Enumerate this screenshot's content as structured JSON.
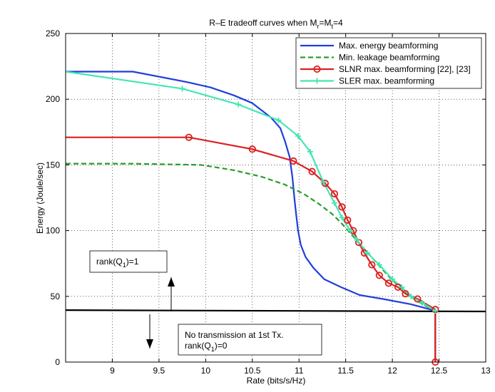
{
  "chart_data": {
    "type": "line",
    "title": {
      "main": "R–E tradeoff curves when M",
      "sub1": "r",
      "mid": "=M",
      "sub2": "t",
      "tail": "=4"
    },
    "xlabel": "Rate (bits/s/Hz)",
    "ylabel": "Energy (Joule/sec)",
    "xlim": [
      8.5,
      13
    ],
    "ylim": [
      0,
      250
    ],
    "xticks": [
      9,
      9.5,
      10,
      10.5,
      11,
      11.5,
      12,
      12.5,
      13
    ],
    "xtick_labels": [
      "9",
      "9.5",
      "10",
      "10.5",
      "11",
      "11.5",
      "12",
      "12.5",
      "13"
    ],
    "yticks": [
      0,
      50,
      100,
      150,
      200,
      250
    ],
    "ytick_labels": [
      "0",
      "50",
      "100",
      "150",
      "200",
      "250"
    ],
    "grid": true,
    "legend_position": "top-right",
    "series": [
      {
        "name": "Max. energy beamforming",
        "color": "#1f3fdb",
        "style": "solid",
        "marker": "none",
        "x": [
          8.5,
          9.22,
          9.8,
          10.05,
          10.3,
          10.5,
          10.7,
          10.8,
          10.85,
          10.9,
          10.93,
          10.95,
          10.97,
          10.99,
          11.02,
          11.07,
          11.15,
          11.27,
          11.45,
          11.65,
          11.9,
          12.2,
          12.46,
          12.46
        ],
        "y": [
          221,
          221,
          213,
          209,
          203,
          197,
          186,
          178,
          168,
          156,
          140,
          125,
          112,
          100,
          89,
          80,
          72,
          63,
          57,
          51,
          48,
          44,
          39,
          0
        ]
      },
      {
        "name": "Min. leakage beamforming",
        "color": "#2a9d2a",
        "style": "dashed",
        "marker": "none",
        "x": [
          8.5,
          9.2,
          9.95,
          10.3,
          10.6,
          10.85,
          11.05,
          11.2,
          11.35,
          11.45,
          11.55,
          11.65,
          11.75,
          11.85,
          11.95,
          12.05,
          12.15,
          12.25,
          12.35,
          12.46,
          12.46
        ],
        "y": [
          151,
          151,
          150,
          146,
          141,
          135,
          128,
          121,
          113,
          106,
          98,
          90,
          82,
          74,
          66,
          59,
          53,
          47,
          43,
          39,
          0
        ]
      },
      {
        "name": "SLNR max. beamforming [22], [23]",
        "color": "#dd1f1f",
        "style": "solid",
        "marker": "circle",
        "x": [
          8.5,
          9.82,
          10.5,
          10.94,
          11.14,
          11.28,
          11.38,
          11.46,
          11.52,
          11.58,
          11.64,
          11.7,
          11.78,
          11.86,
          11.96,
          12.06,
          12.14,
          12.27,
          12.46,
          12.46
        ],
        "y": [
          171,
          171,
          162,
          153,
          145,
          136,
          128,
          118,
          108,
          100,
          91,
          83,
          74,
          66,
          60,
          57,
          52,
          48,
          40,
          0
        ]
      },
      {
        "name": "SLER max. beamforming",
        "color": "#44e6b4",
        "style": "solid",
        "marker": "plus",
        "x": [
          8.5,
          9.75,
          10.35,
          10.78,
          10.99,
          11.12,
          11.26,
          11.38,
          11.46,
          11.55,
          11.62,
          11.73,
          11.86,
          12.0,
          12.1,
          12.2,
          12.32,
          12.46
        ],
        "y": [
          221,
          208,
          196,
          184,
          172,
          160,
          137,
          121,
          110,
          100,
          93,
          83,
          74,
          63,
          57,
          50,
          45,
          39
        ]
      }
    ],
    "reference_line": {
      "name": "rank boundary",
      "color": "#000000",
      "x": [
        8.5,
        13
      ],
      "y": [
        39.5,
        38.5
      ]
    },
    "annotations": [
      {
        "id": "rank1",
        "lines": [
          {
            "pre": "rank(Q",
            "sub": "1",
            "post": ")=1"
          }
        ],
        "arrow": "up"
      },
      {
        "id": "rank0",
        "lines": [
          {
            "pre": "No transmission at 1st Tx.",
            "sub": "",
            "post": ""
          },
          {
            "pre": "rank(Q",
            "sub": "1",
            "post": ")=0"
          }
        ],
        "arrow": "down"
      }
    ]
  }
}
